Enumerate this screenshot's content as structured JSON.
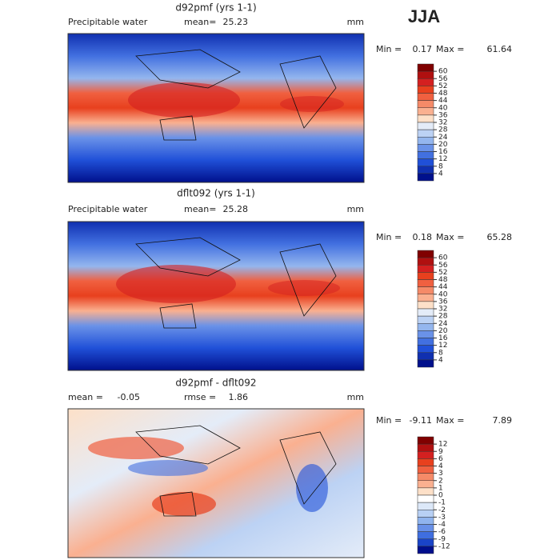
{
  "season": "JJA",
  "panels": [
    {
      "title": "d92pmf (yrs 1-1)",
      "variable": "Precipitable water",
      "mean_label": "mean=",
      "mean": 25.23,
      "units": "mm",
      "min_label": "Min =",
      "min": 0.17,
      "max_label": "Max =",
      "max": 61.64,
      "levels": [
        60,
        56,
        52,
        48,
        44,
        40,
        36,
        32,
        28,
        24,
        20,
        16,
        12,
        8,
        4
      ],
      "colors": [
        "#800000",
        "#b01010",
        "#d42020",
        "#e8401e",
        "#f06040",
        "#f58a68",
        "#fab090",
        "#fde0c8",
        "#e4ecf8",
        "#bcd2f4",
        "#94b6ee",
        "#6a92e8",
        "#4270e0",
        "#2050d8",
        "#1030b0",
        "#00108c"
      ]
    },
    {
      "title": "dflt092 (yrs 1-1)",
      "variable": "Precipitable water",
      "mean_label": "mean=",
      "mean": 25.28,
      "units": "mm",
      "min_label": "Min =",
      "min": 0.18,
      "max_label": "Max =",
      "max": 65.28,
      "levels": [
        60,
        56,
        52,
        48,
        44,
        40,
        36,
        32,
        28,
        24,
        20,
        16,
        12,
        8,
        4
      ],
      "colors": [
        "#800000",
        "#b01010",
        "#d42020",
        "#e8401e",
        "#f06040",
        "#f58a68",
        "#fab090",
        "#fde0c8",
        "#e4ecf8",
        "#bcd2f4",
        "#94b6ee",
        "#6a92e8",
        "#4270e0",
        "#2050d8",
        "#1030b0",
        "#00108c"
      ]
    },
    {
      "title": "d92pmf - dflt092",
      "mean_label": "mean =",
      "mean": -0.05,
      "rmse_label": "rmse =",
      "rmse": 1.86,
      "units": "mm",
      "min_label": "Min =",
      "min": -9.11,
      "max_label": "Max =",
      "max": 7.89,
      "levels": [
        12,
        9,
        6,
        4,
        3,
        2,
        1,
        0,
        -1,
        -2,
        -3,
        -4,
        -6,
        -9,
        -12
      ],
      "colors": [
        "#800000",
        "#b01010",
        "#d42020",
        "#e8401e",
        "#f06040",
        "#f58a68",
        "#fab090",
        "#fde0c8",
        "#ffffff",
        "#dce8f8",
        "#b8d0f4",
        "#90b4ee",
        "#6890e8",
        "#3f6ee0",
        "#1a44c8",
        "#000e8c"
      ]
    }
  ]
}
